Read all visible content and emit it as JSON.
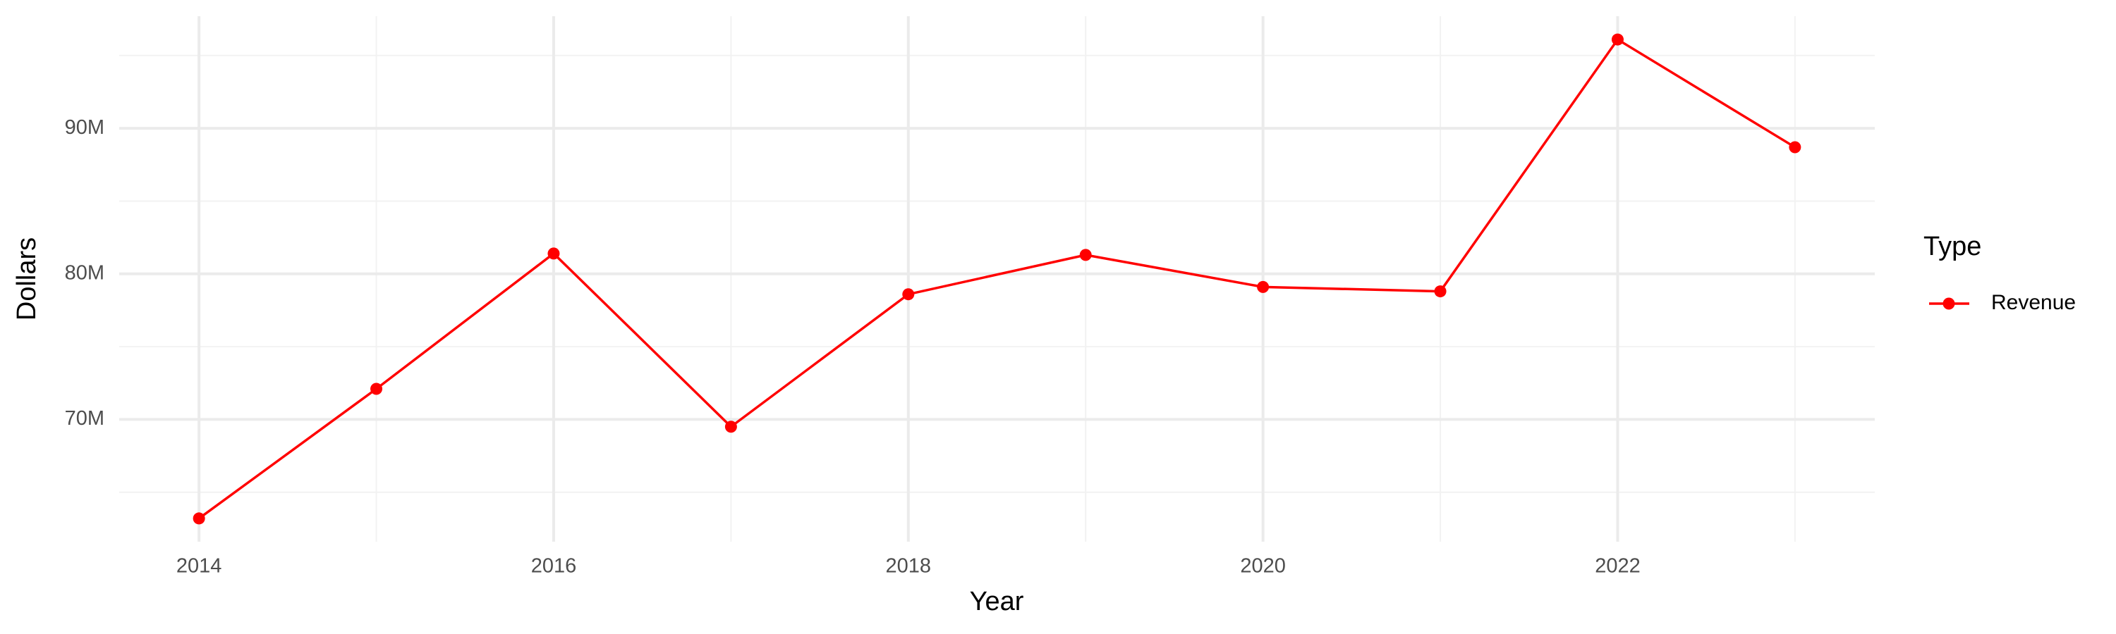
{
  "chart_data": {
    "type": "line",
    "x_label": "Year",
    "y_label": "Dollars",
    "x": [
      2014,
      2015,
      2016,
      2017,
      2018,
      2019,
      2020,
      2021,
      2022,
      2023
    ],
    "series": [
      {
        "name": "Revenue",
        "color": "#ff0000",
        "values": [
          63200000,
          72100000,
          81400000,
          69500000,
          78600000,
          81300000,
          79100000,
          78800000,
          96100000,
          88700000
        ]
      }
    ],
    "xlim": [
      2013.55,
      2023.45
    ],
    "xticks": [
      2014,
      2016,
      2018,
      2020,
      2022
    ],
    "ylim": [
      61600000,
      97700000
    ],
    "yticks": [
      {
        "value": 70000000,
        "label": "70M"
      },
      {
        "value": 80000000,
        "label": "80M"
      },
      {
        "value": 90000000,
        "label": "90M"
      }
    ],
    "grid": true,
    "minor_grid": true,
    "legend_title": "Type",
    "legend_position": "right"
  }
}
